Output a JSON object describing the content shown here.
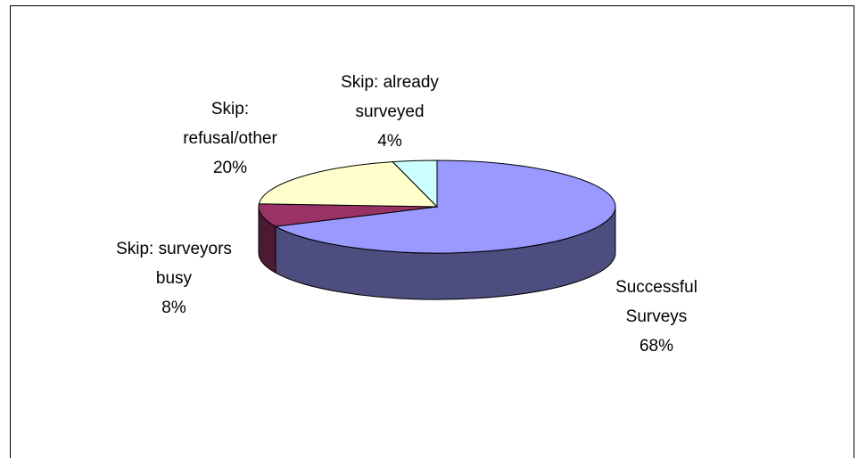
{
  "chart_data": {
    "type": "pie3d",
    "categories": [
      "Successful Surveys",
      "Skip: surveyors busy",
      "Skip: refusal/other",
      "Skip: already surveyed"
    ],
    "values": [
      68,
      8,
      20,
      4
    ],
    "value_labels": [
      "68%",
      "8%",
      "20%",
      "4%"
    ],
    "colors": [
      "#9999ff",
      "#993366",
      "#ffffcc",
      "#ccffff"
    ]
  }
}
